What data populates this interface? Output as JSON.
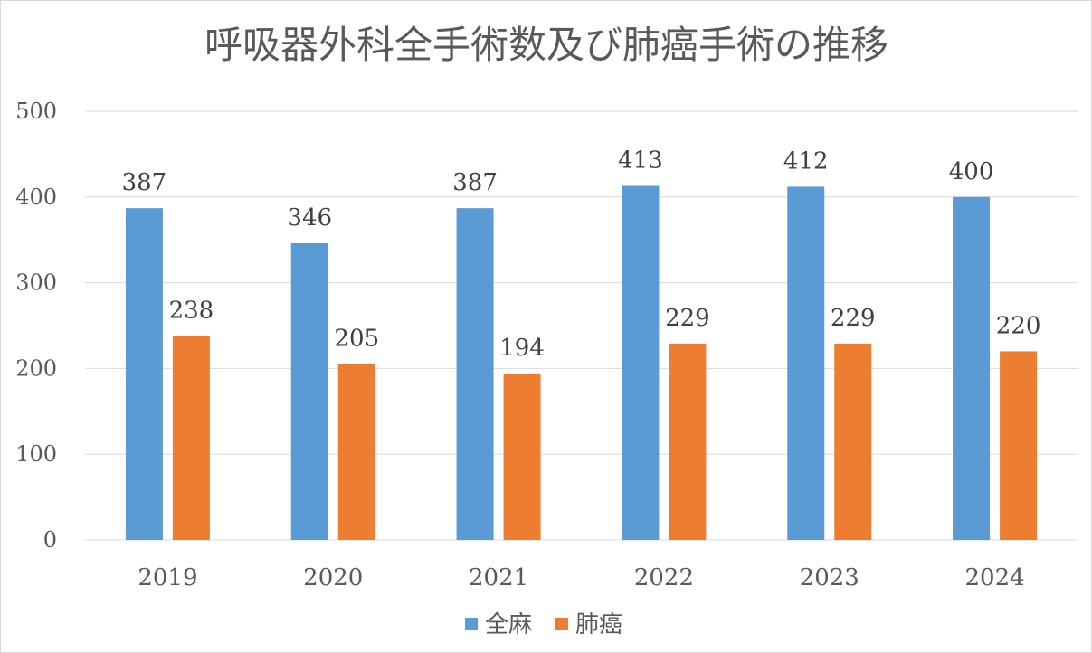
{
  "chart_data": {
    "type": "bar",
    "title": "呼吸器外科全手術数及び肺癌手術の推移",
    "categories": [
      "2019",
      "2020",
      "2021",
      "2022",
      "2023",
      "2024"
    ],
    "series": [
      {
        "name": "全麻",
        "color": "#5b9bd5",
        "values": [
          387,
          346,
          387,
          413,
          412,
          400
        ]
      },
      {
        "name": "肺癌",
        "color": "#ed7d31",
        "values": [
          238,
          205,
          194,
          229,
          229,
          220
        ]
      }
    ],
    "ylim": [
      0,
      500
    ],
    "yticks": [
      0,
      100,
      200,
      300,
      400,
      500
    ],
    "grid": true,
    "legend": "bottom-center",
    "xlabel": "",
    "ylabel": ""
  }
}
